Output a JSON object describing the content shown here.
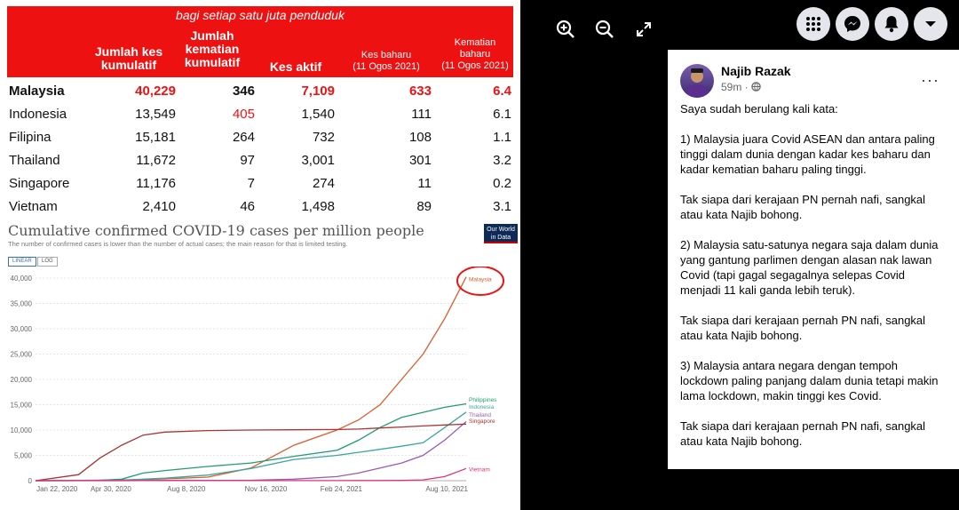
{
  "table": {
    "subtitle": "bagi setiap satu juta penduduk",
    "headers": {
      "cumulative_cases": "Jumlah kes kumulatif",
      "cumulative_deaths": "Jumlah kematian kumulatif",
      "active_cases": "Kes aktif",
      "new_cases": "Kes baharu",
      "new_cases_date": "(11 Ogos 2021)",
      "new_deaths": "Kematian baharu",
      "new_deaths_date": "(11 Ogos 2021)"
    },
    "rows": [
      {
        "country": "Malaysia",
        "cases": "40,229",
        "deaths": "346",
        "active": "7,109",
        "new_cases": "633",
        "new_deaths": "6.4"
      },
      {
        "country": "Indonesia",
        "cases": "13,549",
        "deaths": "405",
        "active": "1,540",
        "new_cases": "111",
        "new_deaths": "6.1"
      },
      {
        "country": "Filipina",
        "cases": "15,181",
        "deaths": "264",
        "active": "732",
        "new_cases": "108",
        "new_deaths": "1.1"
      },
      {
        "country": "Thailand",
        "cases": "11,672",
        "deaths": "97",
        "active": "3,001",
        "new_cases": "301",
        "new_deaths": "3.2"
      },
      {
        "country": "Singapore",
        "cases": "11,176",
        "deaths": "7",
        "active": "274",
        "new_cases": "11",
        "new_deaths": "0.2"
      },
      {
        "country": "Vietnam",
        "cases": "2,410",
        "deaths": "46",
        "active": "1,498",
        "new_cases": "89",
        "new_deaths": "3.1"
      }
    ]
  },
  "chart": {
    "title": "Cumulative confirmed COVID-19 cases per million people",
    "subtitle": "The number of confirmed cases is lower than the number of actual cases; the main reason for that is limited testing.",
    "badge_line1": "Our World",
    "badge_line2": "in Data",
    "toggle_linear": "LINEAR",
    "toggle_log": "LOG"
  },
  "chart_data": {
    "type": "line",
    "title": "Cumulative confirmed COVID-19 cases per million people",
    "xlabel": "",
    "ylabel": "",
    "ylim": [
      0,
      40000
    ],
    "yticks": [
      "0",
      "5,000",
      "10,000",
      "15,000",
      "20,000",
      "25,000",
      "30,000",
      "35,000",
      "40,000"
    ],
    "xticks": [
      "Jan 22, 2020",
      "Apr 30, 2020",
      "Aug 8, 2020",
      "Nov 16, 2020",
      "Feb 24, 2021",
      "Aug 10, 2021"
    ],
    "x": [
      0,
      0.1,
      0.15,
      0.2,
      0.25,
      0.3,
      0.4,
      0.5,
      0.6,
      0.7,
      0.75,
      0.8,
      0.85,
      0.9,
      0.95,
      1.0
    ],
    "series": [
      {
        "name": "Malaysia",
        "color": "#e05a2b",
        "values": [
          0,
          50,
          100,
          150,
          250,
          350,
          700,
          2500,
          7000,
          10000,
          12000,
          15000,
          20000,
          25000,
          32000,
          40229
        ]
      },
      {
        "name": "Philippines",
        "color": "#1f9e70",
        "values": [
          0,
          20,
          80,
          300,
          1500,
          2000,
          2800,
          3500,
          4800,
          6000,
          8000,
          10500,
          12500,
          13500,
          14500,
          15181
        ]
      },
      {
        "name": "Indonesia",
        "color": "#39a7a0",
        "values": [
          0,
          10,
          30,
          80,
          300,
          500,
          1100,
          2400,
          4200,
          5000,
          5600,
          6200,
          6800,
          7500,
          10500,
          13549
        ]
      },
      {
        "name": "Thailand",
        "color": "#9b59b6",
        "values": [
          0,
          40,
          45,
          50,
          50,
          55,
          60,
          80,
          300,
          800,
          1500,
          2500,
          3500,
          5000,
          8000,
          11672
        ]
      },
      {
        "name": "Singapore",
        "color": "#a83434",
        "values": [
          0,
          1200,
          4500,
          7000,
          9000,
          9600,
          9900,
          10000,
          10050,
          10100,
          10200,
          10400,
          10600,
          10800,
          11000,
          11176
        ]
      },
      {
        "name": "Vietnam",
        "color": "#e0327a",
        "values": [
          0,
          3,
          5,
          8,
          10,
          12,
          15,
          18,
          20,
          25,
          30,
          40,
          60,
          150,
          800,
          2410
        ]
      }
    ]
  },
  "post": {
    "author": "Najib Razak",
    "time": "59m · ",
    "more": "···",
    "text": "Saya sudah berulang kali kata:\n\n1) Malaysia juara Covid ASEAN dan antara paling tinggi dalam dunia dengan kadar kes baharu dan kadar kematian baharu paling tinggi.\n\nTak siapa dari kerajaan PN pernah nafi, sangkal atau kata Najib bohong.\n\n2) Malaysia satu-satunya negara saja dalam dunia yang gantung parlimen dengan alasan nak lawan Covid (tapi gagal segagalnya selepas Covid menjadi 11 kali ganda lebih teruk).\n\nTak siapa dari kerajaan pernah PN nafi, sangkal atau kata Najib bohong.\n\n3) Malaysia antara negara dengan tempoh lockdown paling panjang dalam dunia tetapi makin lama lockdown, makin tinggi kes Covid.\n\nTak siapa dari kerajaan pernah PN nafi, sangkal atau kata Najib bohong."
  },
  "icons": [
    "zoom-in-icon",
    "zoom-out-icon",
    "fullscreen-icon",
    "menu-grid-icon",
    "messenger-icon",
    "notifications-icon",
    "account-dropdown-icon",
    "globe-icon"
  ]
}
